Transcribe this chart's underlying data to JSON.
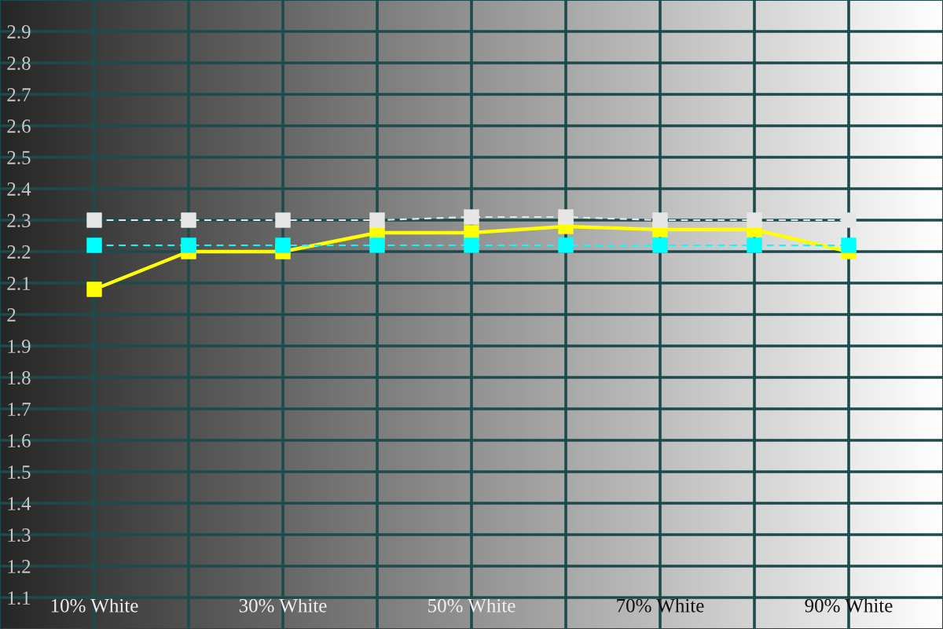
{
  "chart_data": {
    "type": "line",
    "x": [
      10,
      20,
      30,
      40,
      50,
      60,
      70,
      80,
      90
    ],
    "series": [
      {
        "color": "#ffff00",
        "line_style": "solid",
        "values": [
          2.08,
          2.2,
          2.2,
          2.26,
          2.26,
          2.28,
          2.27,
          2.27,
          2.2
        ]
      },
      {
        "color": "#e6e6e6",
        "line_style": "dashed",
        "values": [
          2.3,
          2.3,
          2.3,
          2.3,
          2.31,
          2.31,
          2.3,
          2.3,
          2.3
        ]
      },
      {
        "color": "#00ffff",
        "line_style": "dashed",
        "values": [
          2.22,
          2.22,
          2.22,
          2.22,
          2.22,
          2.22,
          2.22,
          2.22,
          2.22
        ]
      }
    ],
    "marker": "square",
    "xlim": [
      0,
      100
    ],
    "ylim": [
      1,
      3
    ],
    "xticks": [
      {
        "value": 10,
        "label": "10% White"
      },
      {
        "value": 20,
        "label": null
      },
      {
        "value": 30,
        "label": "30% White"
      },
      {
        "value": 40,
        "label": null
      },
      {
        "value": 50,
        "label": "50% White"
      },
      {
        "value": 60,
        "label": null
      },
      {
        "value": 70,
        "label": "70% White"
      },
      {
        "value": 80,
        "label": null
      },
      {
        "value": 90,
        "label": "90% White"
      }
    ],
    "yticks": [
      1.1,
      1.2,
      1.3,
      1.4,
      1.5,
      1.6,
      1.7,
      1.8,
      1.9,
      2,
      2.1,
      2.2,
      2.3,
      2.4,
      2.5,
      2.6,
      2.7,
      2.8,
      2.9
    ],
    "grid": true
  }
}
